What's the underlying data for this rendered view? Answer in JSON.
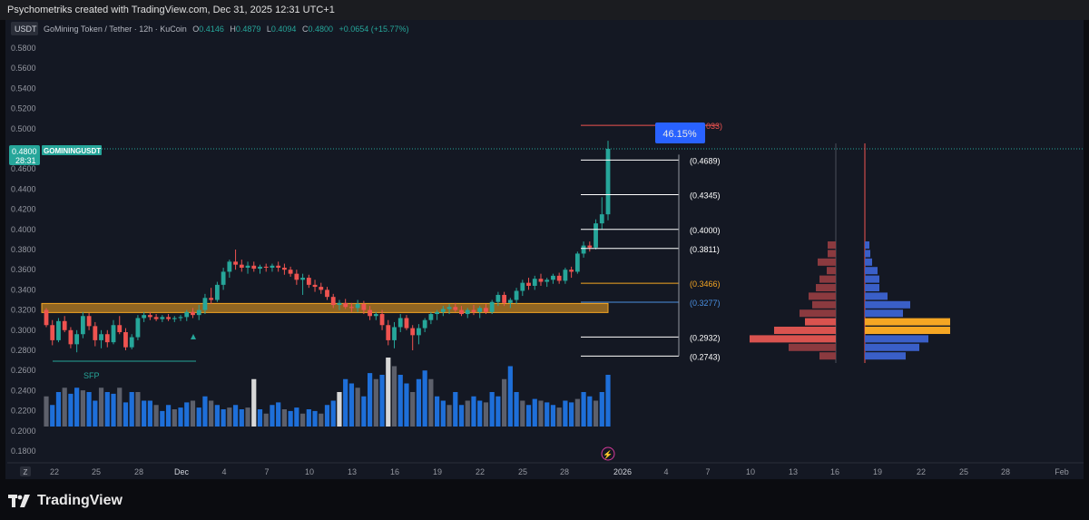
{
  "header": {
    "attribution": "Psychometriks created with TradingView.com, Dec 31, 2025 12:31 UTC+1"
  },
  "legend": {
    "currency": "USDT",
    "symbol": "GoMining Token / Tether · 12h · KuCoin",
    "o_label": "O",
    "o_value": "0.4146",
    "h_label": "H",
    "h_value": "0.4879",
    "l_label": "L",
    "l_value": "0.4094",
    "c_label": "C",
    "c_value": "0.4800",
    "change": "+0.0654 (+15.77%)"
  },
  "price_tag": {
    "price": "0.4800",
    "countdown": "28:31",
    "symbol": "GOMININGUSDT"
  },
  "badge": {
    "text": "46.15%",
    "partial_target": "033)"
  },
  "sfp_label": "SFP",
  "footer": {
    "brand": "TradingView",
    "z_button": "Z"
  },
  "colors": {
    "up": "#26a69a",
    "down": "#ef5350",
    "zone": "#f5a623",
    "badge": "#2962ff",
    "volume_blue": "#1e6fd9",
    "volume_gray": "#5d606b"
  },
  "chart_data": {
    "type": "candlestick",
    "timeframe": "12h",
    "exchange": "KuCoin",
    "ylim": [
      0.18,
      0.59
    ],
    "y_ticks": [
      "0.5800",
      "0.5600",
      "0.5400",
      "0.5200",
      "0.5000",
      "0.4600",
      "0.4400",
      "0.4200",
      "0.4000",
      "0.3800",
      "0.3600",
      "0.3400",
      "0.3200",
      "0.3000",
      "0.2800",
      "0.2600",
      "0.2400",
      "0.2200",
      "0.2000",
      "0.1800"
    ],
    "x_ticks": [
      "22",
      "25",
      "28",
      "Dec",
      "4",
      "7",
      "10",
      "13",
      "16",
      "19",
      "22",
      "25",
      "28",
      "2026",
      "4",
      "7",
      "10",
      "13",
      "16",
      "19",
      "22",
      "25",
      "28",
      "Feb"
    ],
    "candles": [
      [
        0.32,
        0.322,
        0.303,
        0.305
      ],
      [
        0.305,
        0.31,
        0.285,
        0.29
      ],
      [
        0.29,
        0.312,
        0.288,
        0.309
      ],
      [
        0.309,
        0.314,
        0.298,
        0.3
      ],
      [
        0.3,
        0.303,
        0.282,
        0.286
      ],
      [
        0.286,
        0.3,
        0.278,
        0.296
      ],
      [
        0.296,
        0.318,
        0.292,
        0.314
      ],
      [
        0.314,
        0.317,
        0.3,
        0.304
      ],
      [
        0.304,
        0.308,
        0.284,
        0.29
      ],
      [
        0.29,
        0.3,
        0.282,
        0.296
      ],
      [
        0.296,
        0.3,
        0.283,
        0.288
      ],
      [
        0.288,
        0.31,
        0.286,
        0.305
      ],
      [
        0.305,
        0.314,
        0.296,
        0.298
      ],
      [
        0.298,
        0.302,
        0.28,
        0.283
      ],
      [
        0.283,
        0.296,
        0.281,
        0.293
      ],
      [
        0.293,
        0.315,
        0.29,
        0.312
      ],
      [
        0.312,
        0.318,
        0.308,
        0.315
      ],
      [
        0.315,
        0.318,
        0.31,
        0.313
      ],
      [
        0.313,
        0.316,
        0.309,
        0.311
      ],
      [
        0.311,
        0.315,
        0.308,
        0.313
      ],
      [
        0.313,
        0.316,
        0.309,
        0.311
      ],
      [
        0.311,
        0.314,
        0.308,
        0.312
      ],
      [
        0.312,
        0.315,
        0.309,
        0.313
      ],
      [
        0.313,
        0.32,
        0.309,
        0.318
      ],
      [
        0.318,
        0.322,
        0.312,
        0.315
      ],
      [
        0.315,
        0.325,
        0.31,
        0.32
      ],
      [
        0.32,
        0.336,
        0.316,
        0.332
      ],
      [
        0.332,
        0.342,
        0.326,
        0.33
      ],
      [
        0.33,
        0.348,
        0.328,
        0.345
      ],
      [
        0.345,
        0.362,
        0.34,
        0.358
      ],
      [
        0.358,
        0.37,
        0.352,
        0.368
      ],
      [
        0.368,
        0.38,
        0.36,
        0.365
      ],
      [
        0.365,
        0.37,
        0.358,
        0.362
      ],
      [
        0.362,
        0.368,
        0.356,
        0.364
      ],
      [
        0.364,
        0.368,
        0.358,
        0.361
      ],
      [
        0.361,
        0.365,
        0.356,
        0.363
      ],
      [
        0.363,
        0.366,
        0.358,
        0.362
      ],
      [
        0.362,
        0.366,
        0.358,
        0.364
      ],
      [
        0.364,
        0.368,
        0.358,
        0.362
      ],
      [
        0.362,
        0.366,
        0.355,
        0.36
      ],
      [
        0.36,
        0.363,
        0.353,
        0.356
      ],
      [
        0.356,
        0.36,
        0.345,
        0.35
      ],
      [
        0.35,
        0.356,
        0.335,
        0.352
      ],
      [
        0.352,
        0.355,
        0.342,
        0.345
      ],
      [
        0.345,
        0.35,
        0.338,
        0.343
      ],
      [
        0.343,
        0.347,
        0.336,
        0.34
      ],
      [
        0.34,
        0.343,
        0.33,
        0.333
      ],
      [
        0.333,
        0.336,
        0.322,
        0.325
      ],
      [
        0.325,
        0.33,
        0.32,
        0.327
      ],
      [
        0.327,
        0.331,
        0.321,
        0.323
      ],
      [
        0.323,
        0.327,
        0.318,
        0.322
      ],
      [
        0.322,
        0.33,
        0.318,
        0.326
      ],
      [
        0.326,
        0.329,
        0.316,
        0.32
      ],
      [
        0.32,
        0.324,
        0.31,
        0.314
      ],
      [
        0.314,
        0.318,
        0.31,
        0.316
      ],
      [
        0.316,
        0.32,
        0.3,
        0.305
      ],
      [
        0.305,
        0.31,
        0.285,
        0.29
      ],
      [
        0.29,
        0.308,
        0.282,
        0.303
      ],
      [
        0.303,
        0.316,
        0.298,
        0.312
      ],
      [
        0.312,
        0.315,
        0.3,
        0.302
      ],
      [
        0.302,
        0.305,
        0.28,
        0.295
      ],
      [
        0.295,
        0.306,
        0.286,
        0.302
      ],
      [
        0.302,
        0.312,
        0.298,
        0.31
      ],
      [
        0.31,
        0.318,
        0.306,
        0.316
      ],
      [
        0.316,
        0.32,
        0.31,
        0.318
      ],
      [
        0.318,
        0.324,
        0.314,
        0.321
      ],
      [
        0.321,
        0.326,
        0.316,
        0.323
      ],
      [
        0.323,
        0.327,
        0.318,
        0.32
      ],
      [
        0.32,
        0.324,
        0.314,
        0.316
      ],
      [
        0.316,
        0.322,
        0.312,
        0.32
      ],
      [
        0.32,
        0.325,
        0.315,
        0.318
      ],
      [
        0.318,
        0.324,
        0.312,
        0.322
      ],
      [
        0.322,
        0.326,
        0.316,
        0.318
      ],
      [
        0.318,
        0.33,
        0.316,
        0.328
      ],
      [
        0.328,
        0.338,
        0.324,
        0.335
      ],
      [
        0.335,
        0.338,
        0.324,
        0.327
      ],
      [
        0.327,
        0.332,
        0.322,
        0.33
      ],
      [
        0.33,
        0.342,
        0.326,
        0.339
      ],
      [
        0.339,
        0.35,
        0.334,
        0.347
      ],
      [
        0.347,
        0.352,
        0.34,
        0.344
      ],
      [
        0.344,
        0.354,
        0.34,
        0.351
      ],
      [
        0.351,
        0.356,
        0.344,
        0.348
      ],
      [
        0.348,
        0.352,
        0.343,
        0.35
      ],
      [
        0.35,
        0.356,
        0.346,
        0.354
      ],
      [
        0.354,
        0.357,
        0.346,
        0.349
      ],
      [
        0.349,
        0.362,
        0.346,
        0.36
      ],
      [
        0.36,
        0.363,
        0.352,
        0.358
      ],
      [
        0.358,
        0.378,
        0.356,
        0.376
      ],
      [
        0.376,
        0.388,
        0.372,
        0.384
      ],
      [
        0.384,
        0.388,
        0.378,
        0.382
      ],
      [
        0.382,
        0.41,
        0.38,
        0.406
      ],
      [
        0.406,
        0.432,
        0.4,
        0.415
      ],
      [
        0.415,
        0.488,
        0.409,
        0.48
      ]
    ],
    "volume": [
      0.35,
      0.25,
      0.4,
      0.45,
      0.38,
      0.45,
      0.42,
      0.4,
      0.3,
      0.45,
      0.4,
      0.38,
      0.45,
      0.28,
      0.4,
      0.4,
      0.3,
      0.3,
      0.25,
      0.18,
      0.25,
      0.2,
      0.22,
      0.28,
      0.3,
      0.22,
      0.35,
      0.3,
      0.25,
      0.2,
      0.22,
      0.25,
      0.2,
      0.22,
      0.55,
      0.2,
      0.15,
      0.25,
      0.28,
      0.2,
      0.18,
      0.22,
      0.15,
      0.2,
      0.18,
      0.15,
      0.25,
      0.3,
      0.4,
      0.55,
      0.5,
      0.45,
      0.35,
      0.62,
      0.55,
      0.6,
      0.8,
      0.7,
      0.6,
      0.5,
      0.4,
      0.55,
      0.65,
      0.55,
      0.35,
      0.3,
      0.25,
      0.4,
      0.25,
      0.3,
      0.35,
      0.3,
      0.28,
      0.4,
      0.35,
      0.55,
      0.7,
      0.4,
      0.3,
      0.25,
      0.32,
      0.3,
      0.28,
      0.25,
      0.22,
      0.3,
      0.28,
      0.32,
      0.4,
      0.35,
      0.3,
      0.4,
      0.6
    ],
    "volume_highlight_gray": [
      34,
      48,
      56
    ],
    "supply_zone": [
      0.3175,
      0.3265
    ],
    "fib_levels": [
      {
        "label": "(0.4689)",
        "value": 0.4689,
        "color": "#ffffff"
      },
      {
        "label": "(0.4345)",
        "value": 0.4345,
        "color": "#ffffff"
      },
      {
        "label": "(0.4000)",
        "value": 0.4,
        "color": "#ffffff"
      },
      {
        "label": "(0.3811)",
        "value": 0.3811,
        "color": "#ffffff"
      },
      {
        "label": "(0.3466)",
        "value": 0.3466,
        "color": "#f5a623"
      },
      {
        "label": "(0.3277)",
        "value": 0.3277,
        "color": "#4a90e2"
      },
      {
        "label": "(0.2932)",
        "value": 0.2932,
        "color": "#ffffff"
      },
      {
        "label": "(0.2743)",
        "value": 0.2743,
        "color": "#ffffff"
      }
    ],
    "target_line": 0.5033,
    "sfp_level": 0.272
  }
}
